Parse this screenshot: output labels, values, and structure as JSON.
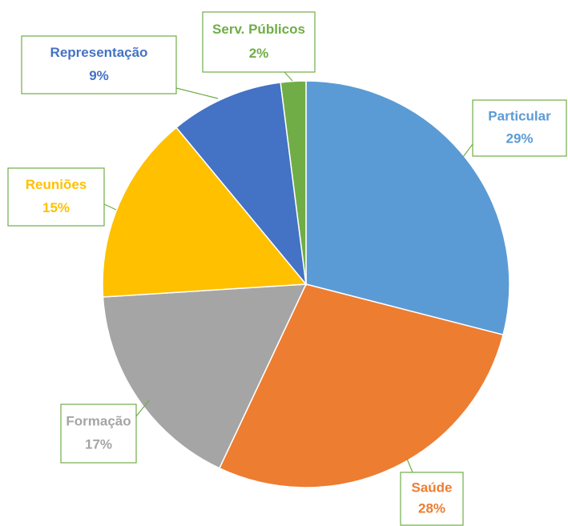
{
  "chart_data": {
    "type": "pie",
    "categories": [
      "Particular",
      "Saúde",
      "Formação",
      "Reuniões",
      "Representação",
      "Serv. Públicos"
    ],
    "values": [
      29,
      28,
      17,
      15,
      9,
      2
    ],
    "value_labels": [
      "29%",
      "28%",
      "17%",
      "15%",
      "9%",
      "2%"
    ],
    "colors": [
      "#5b9bd5",
      "#ed7d31",
      "#a5a5a5",
      "#ffc000",
      "#4472c4",
      "#70ad47"
    ]
  }
}
